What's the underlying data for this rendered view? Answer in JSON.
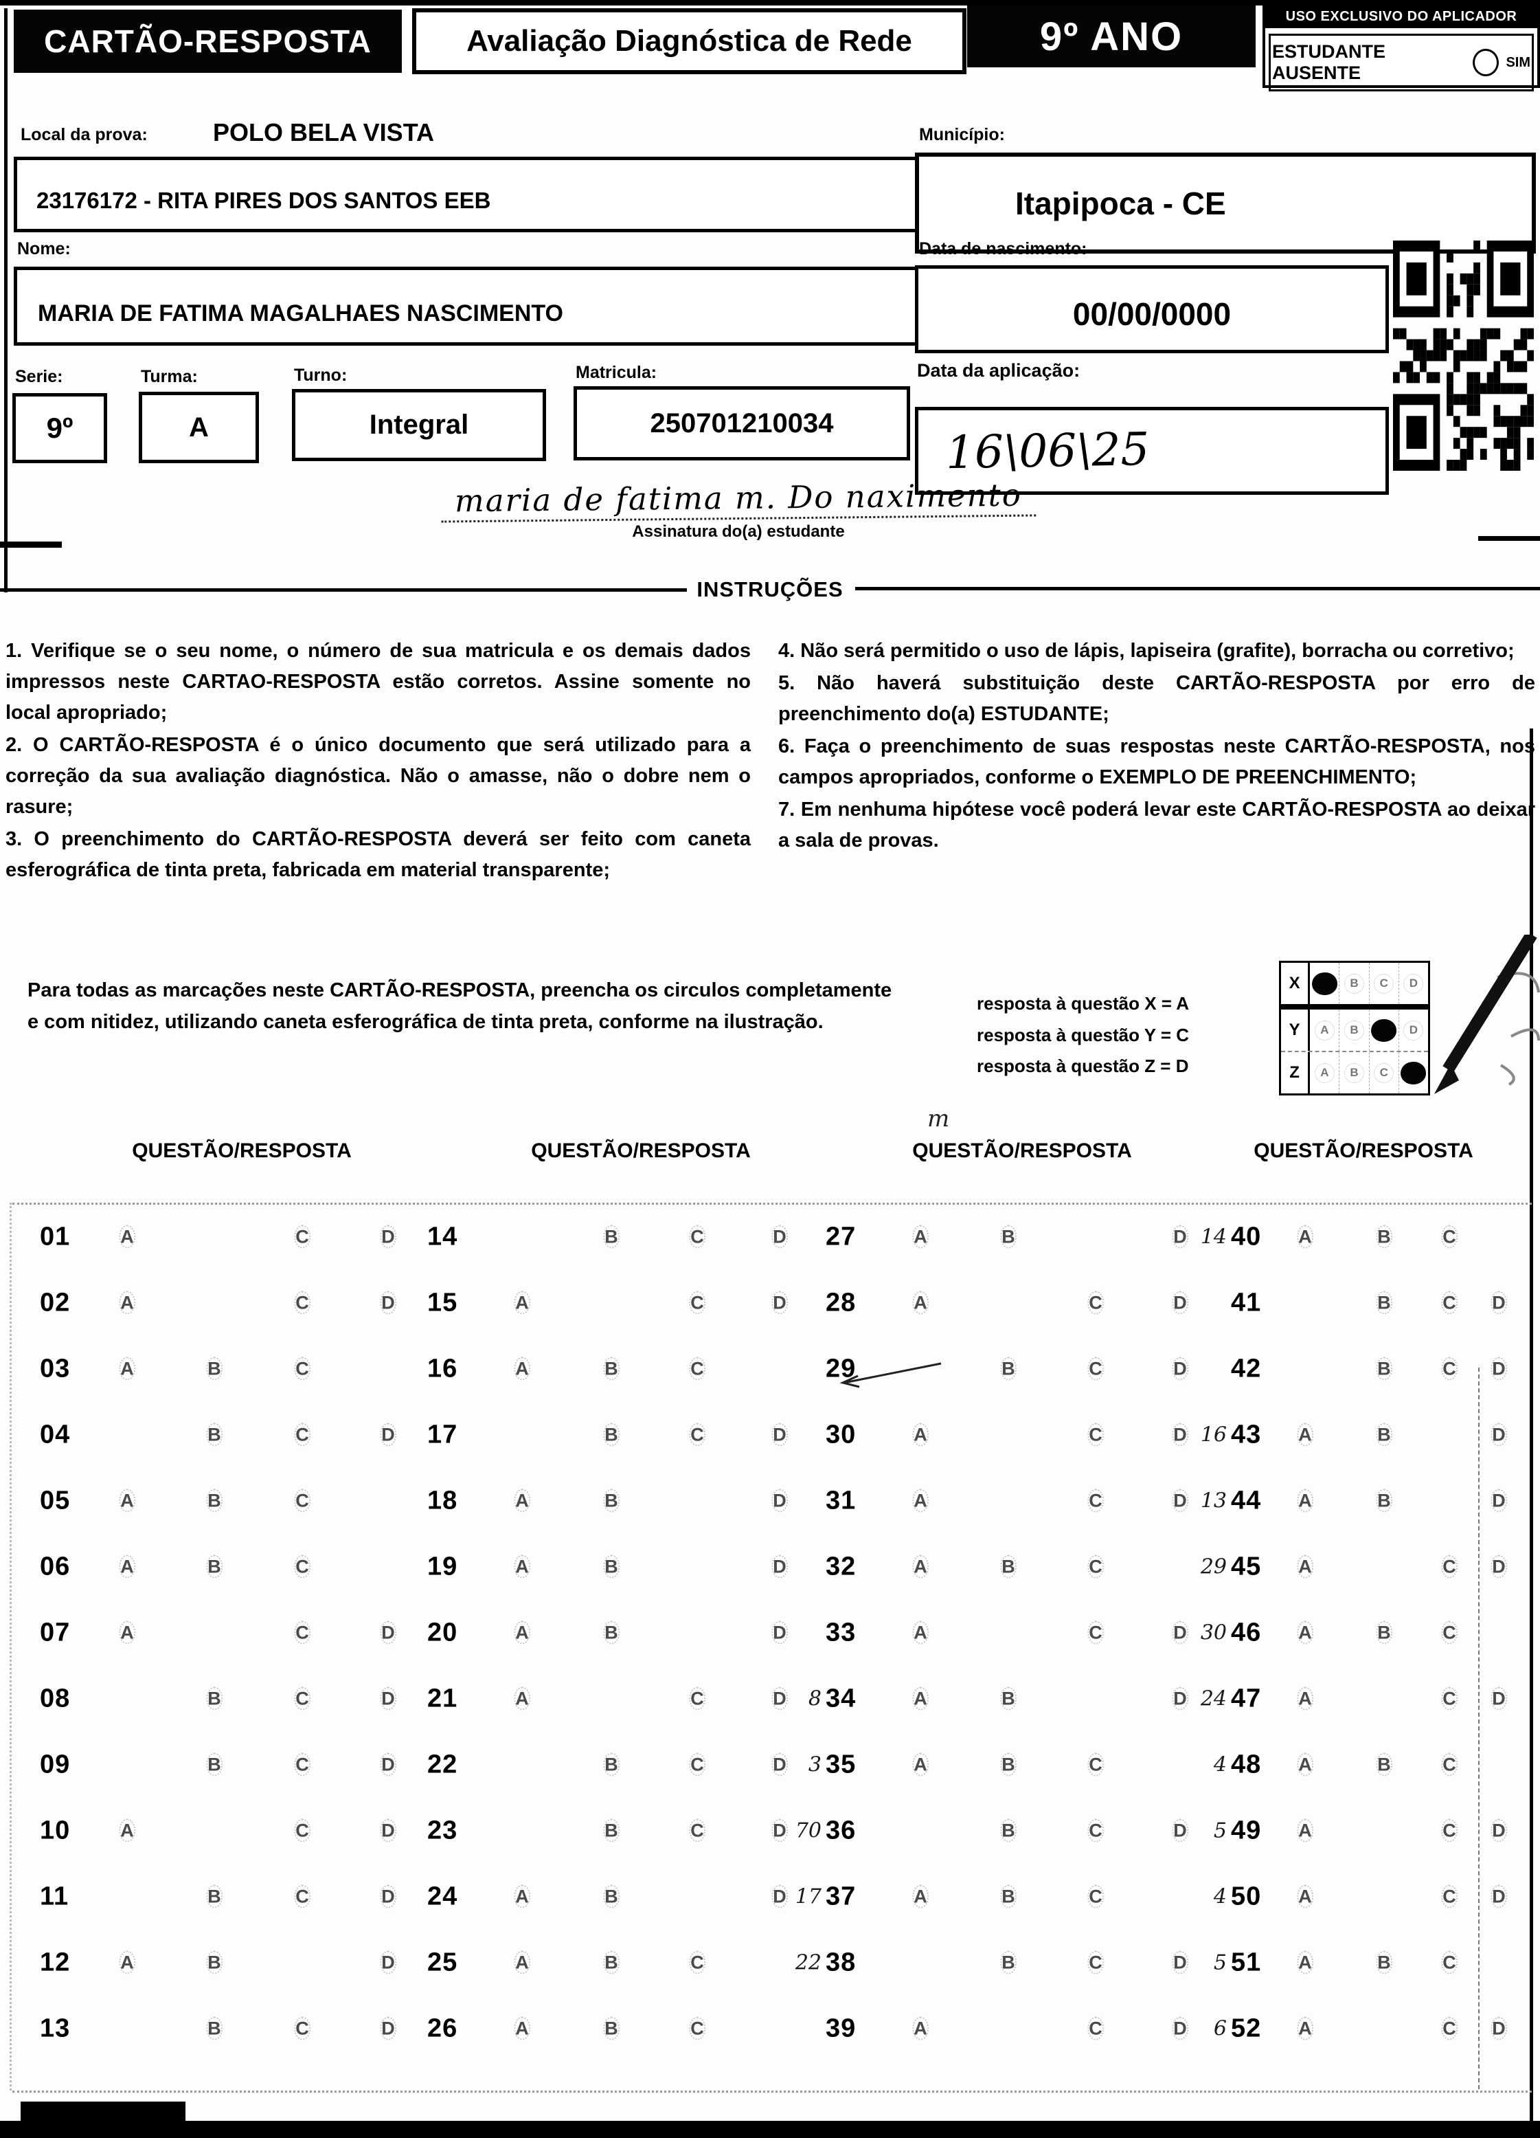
{
  "header": {
    "card_title": "CARTÃO-RESPOSTA",
    "exam_title": "Avaliação Diagnóstica de Rede",
    "grade": "9º ANO",
    "applicator_box_title": "USO EXCLUSIVO DO APLICADOR",
    "absent_label": "ESTUDANTE AUSENTE",
    "absent_option": "SIM"
  },
  "student": {
    "local_label": "Local da prova:",
    "local_name": "POLO BELA VISTA",
    "school": "23176172 - RITA PIRES DOS SANTOS EEB",
    "name_label": "Nome:",
    "name": "MARIA DE FATIMA MAGALHAES NASCIMENTO",
    "municipio_label": "Município:",
    "municipio": "Itapipoca - CE",
    "birth_label": "Data de nascimento:",
    "birth": "00/00/0000",
    "serie_label": "Serie:",
    "serie": "9º",
    "turma_label": "Turma:",
    "turma": "A",
    "turno_label": "Turno:",
    "turno": "Integral",
    "matricula_label": "Matricula:",
    "matricula": "250701210034",
    "aplicacao_label": "Data da aplicação:",
    "aplicacao_value": "16\\06\\25"
  },
  "signature": {
    "value": "maria de fatima m. Do naximento",
    "label": "Assinatura do(a) estudante"
  },
  "instructions": {
    "title": "INSTRUÇÕES",
    "left": [
      "1. Verifique se o seu nome, o número de sua matricula e os demais dados impressos neste CARTAO-RESPOSTA estão corretos. Assine somente no local apropriado;",
      "2. O CARTÃO-RESPOSTA é o único documento que será utilizado para a correção da sua avaliação diagnóstica. Não o amasse, não o dobre nem o rasure;",
      "3. O preenchimento do CARTÃO-RESPOSTA deverá ser feito com caneta esferográfica de tinta preta, fabricada em material transparente;"
    ],
    "right": [
      "4. Não será permitido o uso de lápis, lapiseira (grafite), borracha ou corretivo;",
      "5. Não haverá substituição deste CARTÃO-RESPOSTA por erro de preenchimento do(a) ESTUDANTE;",
      "6. Faça o preenchimento de suas respostas neste CARTÃO-RESPOSTA, nos campos apropriados, conforme o EXEMPLO DE PREENCHIMENTO;",
      "7. Em nenhuma hipótese você poderá levar este CARTÃO-RESPOSTA ao deixar a sala de provas."
    ]
  },
  "fill_note": "Para todas as marcações neste CARTÃO-RESPOSTA, preencha os circulos completamente e com nitidez, utilizando caneta esferográfica de tinta preta, conforme na ilustração.",
  "example": {
    "captions": [
      "resposta à questão X = A",
      "resposta à questão Y = C",
      "resposta à questão Z = D"
    ],
    "option_letters": [
      "A",
      "B",
      "C",
      "D"
    ],
    "rows": [
      {
        "label": "X",
        "filled": "A"
      },
      {
        "label": "Y",
        "filled": "C"
      },
      {
        "label": "Z",
        "filled": "D"
      }
    ]
  },
  "answer_grid": {
    "column_header": "QUESTÃO/RESPOSTA",
    "options": [
      "A",
      "B",
      "C",
      "D"
    ],
    "stray_mark": "m",
    "columns": [
      [
        {
          "num": "01",
          "answer": "B"
        },
        {
          "num": "02",
          "answer": "B"
        },
        {
          "num": "03",
          "answer": "D"
        },
        {
          "num": "04",
          "answer": "A"
        },
        {
          "num": "05",
          "answer": "D"
        },
        {
          "num": "06",
          "answer": "D"
        },
        {
          "num": "07",
          "answer": "B"
        },
        {
          "num": "08",
          "answer": "A"
        },
        {
          "num": "09",
          "answer": "A"
        },
        {
          "num": "10",
          "answer": "B"
        },
        {
          "num": "11",
          "answer": "A"
        },
        {
          "num": "12",
          "answer": "C"
        },
        {
          "num": "13",
          "answer": "A"
        }
      ],
      [
        {
          "num": "14",
          "answer": "A"
        },
        {
          "num": "15",
          "answer": "B"
        },
        {
          "num": "16",
          "answer": "D"
        },
        {
          "num": "17",
          "answer": "A"
        },
        {
          "num": "18",
          "answer": "C"
        },
        {
          "num": "19",
          "answer": "C"
        },
        {
          "num": "20",
          "answer": "C"
        },
        {
          "num": "21",
          "answer": "B"
        },
        {
          "num": "22",
          "answer": "A"
        },
        {
          "num": "23",
          "answer": "A"
        },
        {
          "num": "24",
          "answer": "C"
        },
        {
          "num": "25",
          "answer": "D"
        },
        {
          "num": "26",
          "answer": "D"
        }
      ],
      [
        {
          "num": "27",
          "answer": "C"
        },
        {
          "num": "28",
          "answer": "B"
        },
        {
          "num": "29",
          "answer": "A"
        },
        {
          "num": "30",
          "answer": "B"
        },
        {
          "num": "31",
          "answer": "B"
        },
        {
          "num": "32",
          "answer": "D"
        },
        {
          "num": "33",
          "answer": "B"
        },
        {
          "num": "34",
          "answer": "C",
          "note": "8"
        },
        {
          "num": "35",
          "answer": "D",
          "note": "3"
        },
        {
          "num": "36",
          "answer": "A",
          "note": "70"
        },
        {
          "num": "37",
          "answer": "D",
          "note": "17"
        },
        {
          "num": "38",
          "answer": "A",
          "note": "22"
        },
        {
          "num": "39",
          "answer": "B"
        }
      ],
      [
        {
          "num": "40",
          "answer": "D",
          "note": "14"
        },
        {
          "num": "41",
          "answer": "A"
        },
        {
          "num": "42",
          "answer": "A"
        },
        {
          "num": "43",
          "answer": "C",
          "note": "16"
        },
        {
          "num": "44",
          "answer": "C",
          "note": "13"
        },
        {
          "num": "45",
          "answer": "B",
          "note": "29"
        },
        {
          "num": "46",
          "answer": "D",
          "note": "30"
        },
        {
          "num": "47",
          "answer": "B",
          "note": "24"
        },
        {
          "num": "48",
          "answer": "D",
          "note": "4"
        },
        {
          "num": "49",
          "answer": "B",
          "note": "5"
        },
        {
          "num": "50",
          "answer": "B",
          "note": "4"
        },
        {
          "num": "51",
          "answer": "D",
          "note": "5"
        },
        {
          "num": "52",
          "answer": "B",
          "note": "6"
        }
      ]
    ]
  }
}
